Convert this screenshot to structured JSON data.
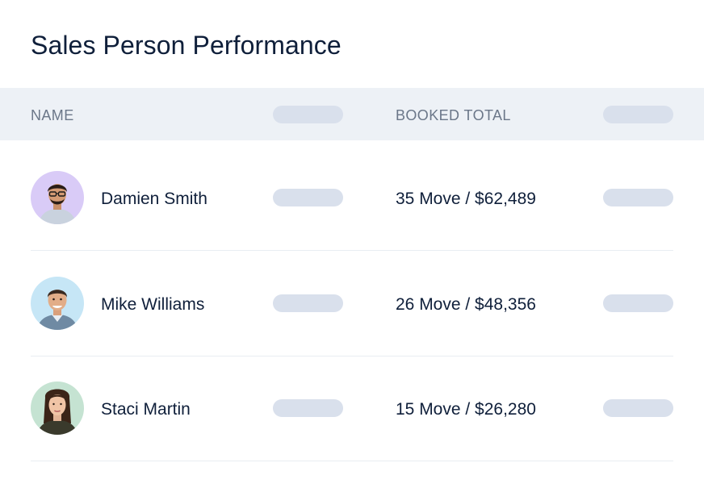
{
  "page": {
    "title": "Sales Person Performance"
  },
  "table": {
    "columns": {
      "name": "NAME",
      "booked_total": "BOOKED TOTAL"
    },
    "rows": [
      {
        "name": "Damien Smith",
        "booked_total": "35 Move / $62,489",
        "avatar_bg": "#d9cbf7"
      },
      {
        "name": "Mike Williams",
        "booked_total": "26 Move / $48,356",
        "avatar_bg": "#c6e6f6"
      },
      {
        "name": "Staci Martin",
        "booked_total": "15 Move / $26,280",
        "avatar_bg": "#c5e3d2"
      }
    ]
  },
  "colors": {
    "header_bg": "#edf1f6",
    "placeholder_pill": "#d9e0ec",
    "text_primary": "#0f1f3a",
    "text_muted": "#6b7789"
  }
}
